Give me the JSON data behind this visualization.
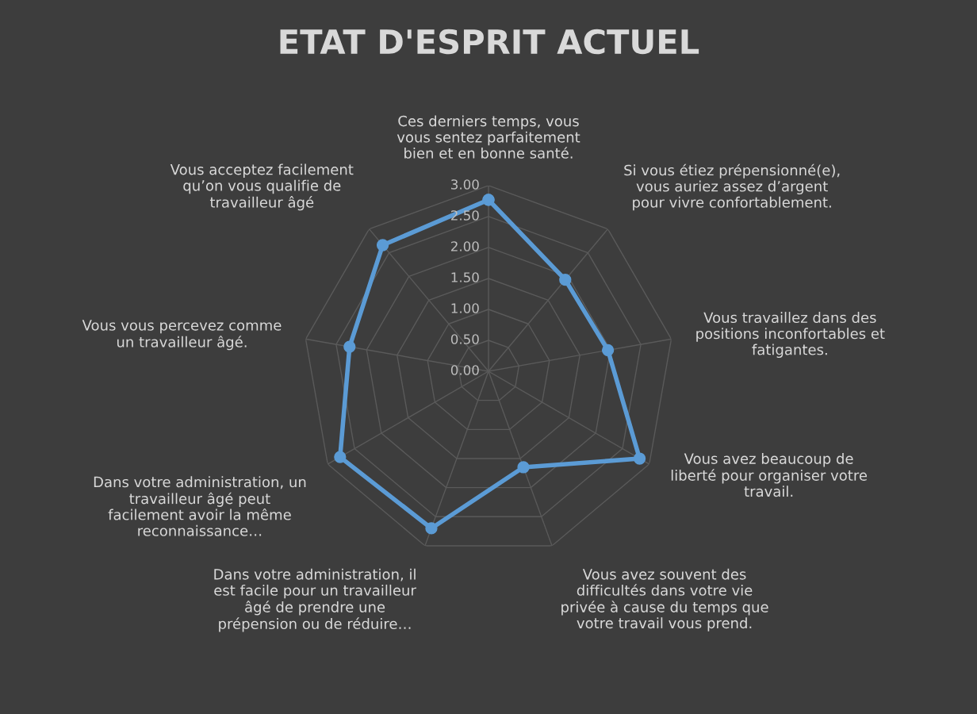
{
  "chart_data": {
    "type": "radar",
    "title": "ETAT D'ESPRIT ACTUEL",
    "categories": [
      "Ces derniers temps, vous\nvous sentez parfaitement\nbien et en bonne santé.",
      "Si vous étiez prépensionné(e),\nvous auriez assez d’argent\npour vivre confortablement.",
      "Vous travaillez dans des\npositions inconfortables et\nfatigantes.",
      "Vous avez beaucoup de\nliberté pour organiser votre\ntravail.",
      "Vous avez souvent des\ndifficultés dans votre vie\nprivée à cause du temps que\nvotre travail vous prend.",
      "Dans votre administration, il\nest facile pour un travailleur\nâgé de prendre une\nprépension ou de réduire…",
      "Dans votre administration, un\ntravailleur âgé peut\nfacilement avoir la même\nreconnaissance…",
      "Vous vous percevez comme\nun travailleur âgé.",
      "Vous acceptez facilement\nqu’on vous qualifie de\ntravailleur âgé"
    ],
    "series": [
      {
        "color": "#5b9bd5",
        "values": [
          2.77,
          1.93,
          1.96,
          2.82,
          1.65,
          2.7,
          2.77,
          2.28,
          2.66
        ]
      }
    ],
    "ylim": [
      0,
      3
    ],
    "yticks": [
      {
        "value": 0,
        "label": "0.00"
      },
      {
        "value": 0.5,
        "label": "0.50"
      },
      {
        "value": 1,
        "label": "1.00"
      },
      {
        "value": 1.5,
        "label": "1.50"
      },
      {
        "value": 2,
        "label": "2.00"
      },
      {
        "value": 2.5,
        "label": "2.50"
      },
      {
        "value": 3,
        "label": "3.00"
      }
    ],
    "grid": true,
    "marker": "circle",
    "line_style": "solid"
  }
}
